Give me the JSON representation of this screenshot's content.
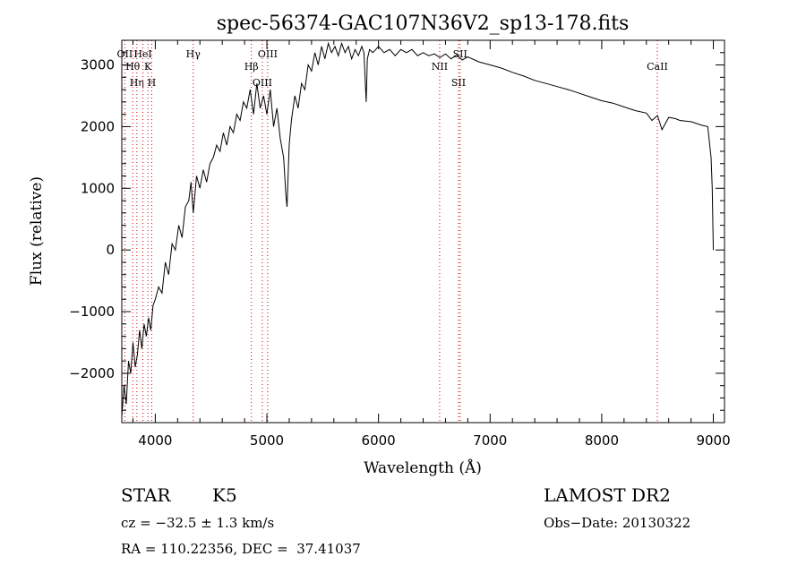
{
  "chart_data": {
    "type": "line",
    "title": "spec-56374-GAC107N36V2_sp13-178.fits",
    "xlabel": "Wavelength (Å)",
    "ylabel": "Flux (relative)",
    "xlim": [
      3700,
      9100
    ],
    "ylim": [
      -2800,
      3400
    ],
    "x_ticks": [
      4000,
      5000,
      6000,
      7000,
      8000,
      9000
    ],
    "y_ticks": [
      -2000,
      -1000,
      0,
      1000,
      2000,
      3000
    ],
    "grid": false,
    "series": [
      {
        "x": [
          3700,
          3720,
          3740,
          3760,
          3780,
          3800,
          3820,
          3840,
          3860,
          3880,
          3900,
          3920,
          3940,
          3960,
          3980,
          4000,
          4030,
          4060,
          4090,
          4120,
          4150,
          4180,
          4210,
          4240,
          4270,
          4300,
          4320,
          4340,
          4370,
          4400,
          4430,
          4460,
          4490,
          4520,
          4550,
          4580,
          4610,
          4640,
          4670,
          4700,
          4730,
          4760,
          4790,
          4820,
          4850,
          4880,
          4910,
          4940,
          4970,
          5000,
          5030,
          5060,
          5090,
          5120,
          5150,
          5170,
          5180,
          5190,
          5200,
          5220,
          5250,
          5280,
          5310,
          5340,
          5370,
          5400,
          5430,
          5460,
          5490,
          5520,
          5550,
          5580,
          5610,
          5640,
          5670,
          5700,
          5730,
          5760,
          5790,
          5820,
          5850,
          5870,
          5890,
          5900,
          5920,
          5950,
          6000,
          6050,
          6100,
          6150,
          6200,
          6250,
          6300,
          6350,
          6400,
          6450,
          6500,
          6550,
          6600,
          6650,
          6700,
          6750,
          6800,
          6900,
          7000,
          7100,
          7200,
          7300,
          7400,
          7500,
          7600,
          7700,
          7800,
          7900,
          8000,
          8100,
          8200,
          8300,
          8400,
          8450,
          8500,
          8540,
          8600,
          8660,
          8700,
          8800,
          8900,
          8950,
          8980,
          8990,
          9000
        ],
        "y": [
          -2700,
          -2200,
          -2500,
          -1800,
          -2000,
          -1500,
          -1900,
          -1700,
          -1300,
          -1600,
          -1200,
          -1400,
          -1100,
          -1300,
          -900,
          -800,
          -600,
          -700,
          -200,
          -400,
          100,
          0,
          400,
          200,
          700,
          800,
          1100,
          600,
          1200,
          1000,
          1300,
          1100,
          1400,
          1500,
          1700,
          1600,
          1900,
          1700,
          2000,
          1900,
          2200,
          2100,
          2400,
          2300,
          2600,
          2200,
          2700,
          2300,
          2500,
          2200,
          2600,
          2000,
          2300,
          1800,
          1500,
          900,
          700,
          1200,
          1700,
          2100,
          2500,
          2300,
          2700,
          2600,
          3000,
          2900,
          3200,
          3000,
          3300,
          3100,
          3350,
          3200,
          3300,
          3150,
          3350,
          3200,
          3300,
          3100,
          3250,
          3150,
          3300,
          3200,
          2400,
          3100,
          3250,
          3200,
          3300,
          3200,
          3250,
          3150,
          3250,
          3200,
          3250,
          3150,
          3200,
          3150,
          3180,
          3120,
          3180,
          3100,
          3160,
          3080,
          3130,
          3050,
          3000,
          2950,
          2880,
          2820,
          2750,
          2700,
          2650,
          2600,
          2540,
          2480,
          2420,
          2380,
          2320,
          2260,
          2220,
          2100,
          2180,
          1950,
          2150,
          2130,
          2100,
          2080,
          2020,
          2000,
          1500,
          1000,
          0
        ]
      }
    ],
    "lines": [
      {
        "label": "OII",
        "x": 3727
      },
      {
        "label": "Hθ",
        "x": 3798
      },
      {
        "label": "Hη",
        "x": 3835
      },
      {
        "label": "HeI",
        "x": 3889
      },
      {
        "label": "K",
        "x": 3934
      },
      {
        "label": "H",
        "x": 3968
      },
      {
        "label": "Hγ",
        "x": 4340
      },
      {
        "label": "Hβ",
        "x": 4861
      },
      {
        "label": "OIII",
        "x": 4959
      },
      {
        "label": "OIII",
        "x": 5007
      },
      {
        "label": "NII",
        "x": 6548
      },
      {
        "label": "SII",
        "x": 6717
      },
      {
        "label": "SII",
        "x": 6731
      },
      {
        "label": "CaII",
        "x": 8498
      }
    ]
  },
  "info": {
    "class": "STAR",
    "subclass": "K5",
    "survey": "LAMOST DR2",
    "cz": "cz = −32.5 ± 1.3 km/s",
    "obsdate": "Obs−Date: 20130322",
    "radec": "RA = 110.22356, DEC =  37.41037"
  }
}
